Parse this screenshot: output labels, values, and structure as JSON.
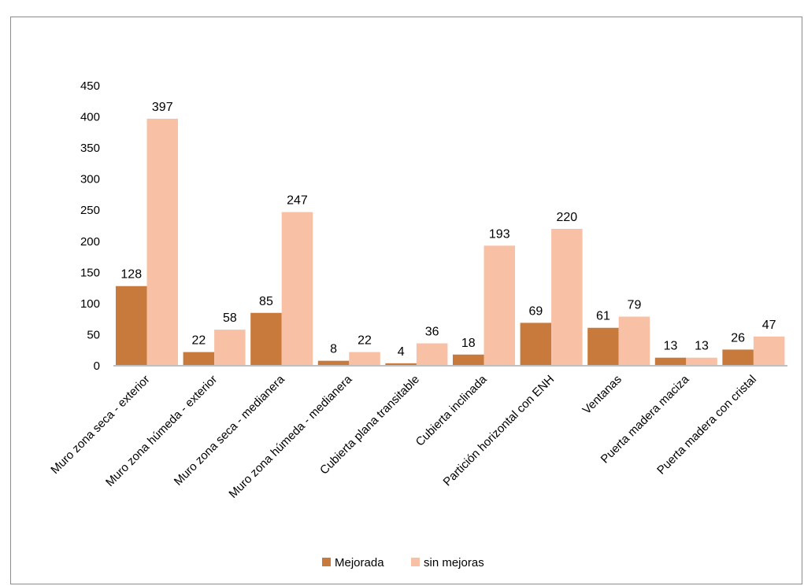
{
  "chart_data": {
    "type": "bar",
    "title": "",
    "xlabel": "",
    "ylabel": "",
    "ylim": [
      0,
      450
    ],
    "yticks": [
      0,
      50,
      100,
      150,
      200,
      250,
      300,
      350,
      400,
      450
    ],
    "grid": false,
    "legend_position": "bottom",
    "categories": [
      "Muro zona seca - exterior",
      "Muro zona húmeda - exterior",
      "Muro zona seca - medianera",
      "Muro zona húmeda - medianera",
      "Cubierta plana transitable",
      "Cubierta inclinada",
      "Partición horizontal con ENH",
      "Ventanas",
      "Puerta madera maciza",
      "Puerta madera con cristal"
    ],
    "series": [
      {
        "name": "Mejorada",
        "color": "#c87a3c",
        "values": [
          128,
          22,
          85,
          8,
          4,
          18,
          69,
          61,
          13,
          26
        ]
      },
      {
        "name": "sin mejoras",
        "color": "#f8c0a4",
        "values": [
          397,
          58,
          247,
          22,
          36,
          193,
          220,
          79,
          13,
          47
        ]
      }
    ]
  }
}
